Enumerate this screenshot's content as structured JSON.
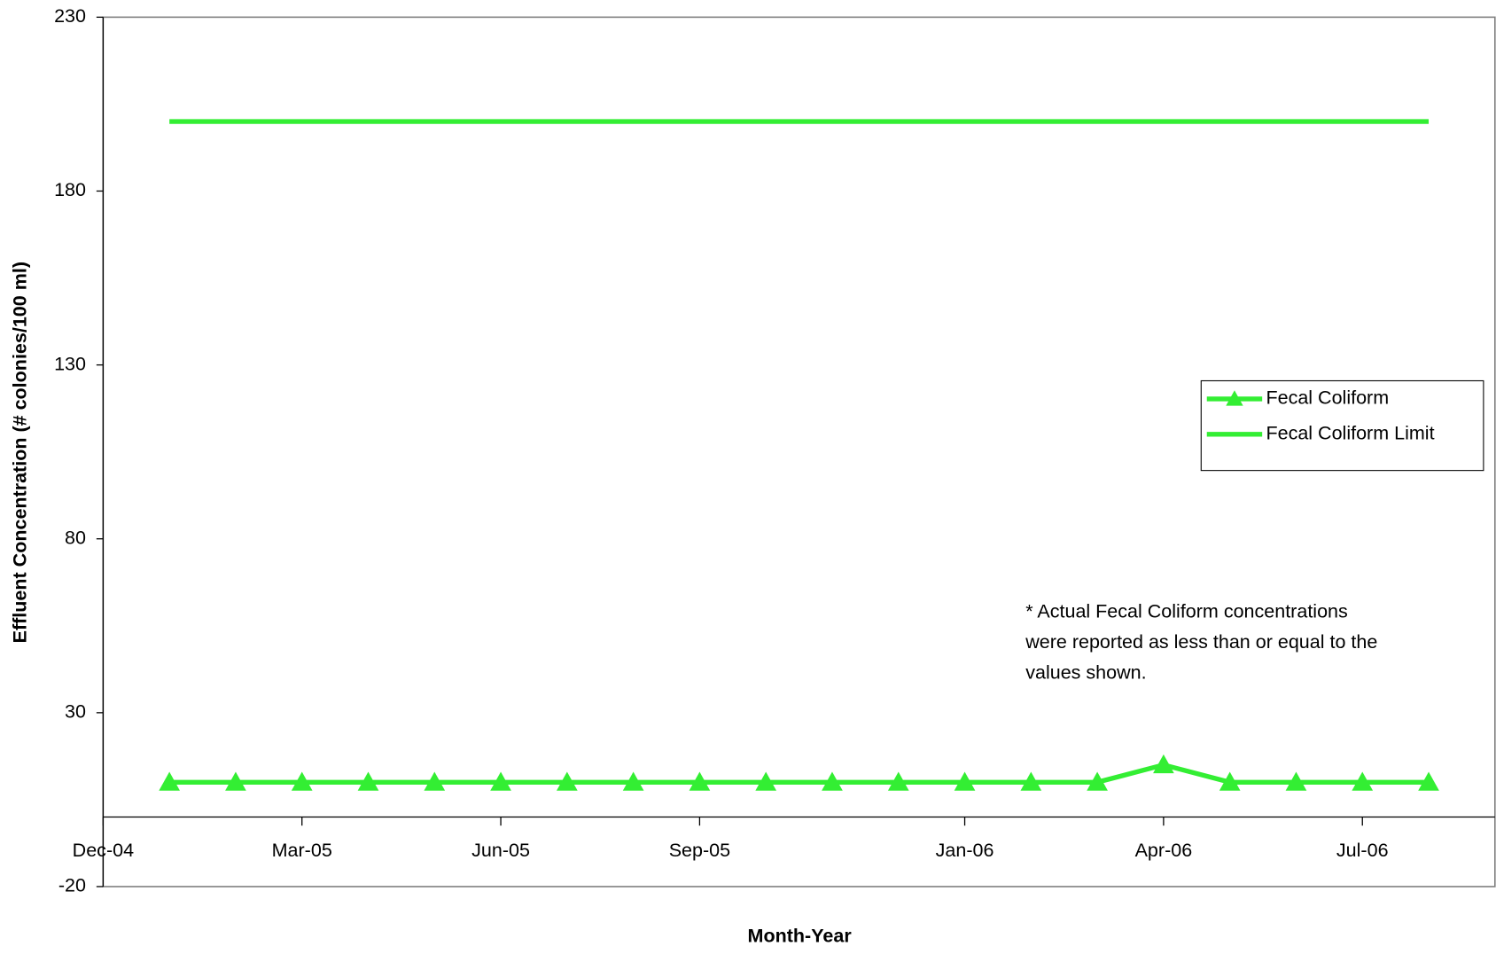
{
  "chart_data": {
    "type": "line",
    "x_label": "Month-Year",
    "y_label": "Effluent Concentration (# colonies/100 ml)",
    "x": [
      "Jan-05",
      "Feb-05",
      "Mar-05",
      "Apr-05",
      "May-05",
      "Jun-05",
      "Jul-05",
      "Aug-05",
      "Sep-05",
      "Oct-05",
      "Nov-05",
      "Dec-05",
      "Jan-06",
      "Feb-06",
      "Mar-06",
      "Apr-06",
      "May-06",
      "Jun-06",
      "Jul-06",
      "Aug-06"
    ],
    "series": [
      {
        "name": "Fecal Coliform",
        "color": "#33ee33",
        "marker": "triangle",
        "values": [
          10,
          10,
          10,
          10,
          10,
          10,
          10,
          10,
          10,
          10,
          10,
          10,
          10,
          10,
          10,
          15,
          10,
          10,
          10,
          10
        ]
      },
      {
        "name": "Fecal Coliform Limit",
        "color": "#33ee33",
        "values": [
          200,
          200,
          200,
          200,
          200,
          200,
          200,
          200,
          200,
          200,
          200,
          200,
          200,
          200,
          200,
          200,
          200,
          200,
          200,
          200
        ]
      }
    ],
    "xlim": [
      "Dec-04",
      "Sep-06"
    ],
    "xticks": [
      "Dec-04",
      "Mar-05",
      "Jun-05",
      "Sep-05",
      "Jan-06",
      "Apr-06",
      "Jul-06"
    ],
    "ylim": [
      -20,
      230
    ],
    "yticks": [
      -20,
      30,
      80,
      130,
      180,
      230
    ],
    "legend": "right",
    "annotation": [
      "* Actual Fecal Coliform concentrations",
      "were reported as less than or equal to the",
      "values shown."
    ]
  }
}
